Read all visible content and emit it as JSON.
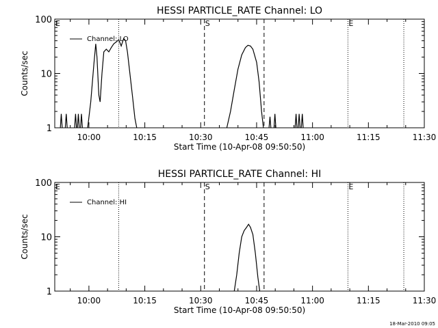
{
  "colors": {
    "background": "#ffffff",
    "ink": "#000000"
  },
  "footer_timestamp": "18-Mar-2010 09:05",
  "chart_data": [
    {
      "type": "line",
      "title": "HESSI PARTICLE_RATE Channel: LO",
      "xlabel": "Start Time (10-Apr-08 09:50:50)",
      "ylabel": "Counts/sec",
      "y_scale": "log",
      "ylim": [
        1,
        100
      ],
      "y_ticks": [
        {
          "value": 1,
          "label": "1"
        },
        {
          "value": 10,
          "label": "10"
        },
        {
          "value": 100,
          "label": "100"
        }
      ],
      "xlim": [
        "09:50:50",
        "11:30:00"
      ],
      "x_ticks": [
        "10:00",
        "10:15",
        "10:30",
        "10:45",
        "11:00",
        "11:15",
        "11:30"
      ],
      "legend": {
        "label": "Channel: LO",
        "position": "top-left"
      },
      "markers": [
        {
          "time": "09:50:50",
          "style": "dotted",
          "label": "E"
        },
        {
          "time": "10:08:00",
          "style": "dotted",
          "label": ""
        },
        {
          "time": "10:31:00",
          "style": "dashed",
          "label": "S"
        },
        {
          "time": "10:47:00",
          "style": "dashed",
          "label": ""
        },
        {
          "time": "11:09:30",
          "style": "dotted",
          "label": "E"
        },
        {
          "time": "11:24:30",
          "style": "dotted",
          "label": ""
        }
      ],
      "series": [
        {
          "name": "Channel: LO",
          "segments": [
            [
              [
                "09:52:20",
                1
              ],
              [
                "09:52:35",
                1.8
              ],
              [
                "09:52:50",
                1
              ]
            ],
            [
              [
                "09:53:40",
                1
              ],
              [
                "09:53:55",
                1.8
              ],
              [
                "09:54:10",
                1
              ]
            ],
            [
              [
                "09:56:10",
                1
              ],
              [
                "09:56:25",
                1.8
              ],
              [
                "09:56:40",
                1
              ]
            ],
            [
              [
                "09:56:55",
                1
              ],
              [
                "09:57:10",
                1.8
              ],
              [
                "09:57:25",
                1
              ]
            ],
            [
              [
                "09:57:45",
                1
              ],
              [
                "09:58:00",
                1.8
              ],
              [
                "09:58:15",
                1
              ]
            ],
            [
              [
                "09:59:40",
                1
              ],
              [
                "10:00:30",
                3
              ],
              [
                "10:01:20",
                15
              ],
              [
                "10:01:50",
                35
              ],
              [
                "10:02:10",
                20
              ],
              [
                "10:02:40",
                4
              ],
              [
                "10:03:00",
                3
              ],
              [
                "10:03:30",
                10
              ],
              [
                "10:04:00",
                25
              ],
              [
                "10:04:40",
                28
              ],
              [
                "10:05:20",
                25
              ],
              [
                "10:06:00",
                30
              ],
              [
                "10:06:40",
                35
              ],
              [
                "10:07:20",
                38
              ],
              [
                "10:08:00",
                42
              ],
              [
                "10:08:40",
                32
              ],
              [
                "10:09:20",
                44
              ],
              [
                "10:09:50",
                40
              ],
              [
                "10:10:20",
                25
              ],
              [
                "10:11:00",
                10
              ],
              [
                "10:11:40",
                4
              ],
              [
                "10:12:20",
                1.5
              ],
              [
                "10:12:50",
                1
              ]
            ],
            [
              [
                "10:37:00",
                1
              ],
              [
                "10:38:00",
                2
              ],
              [
                "10:39:00",
                5
              ],
              [
                "10:40:00",
                12
              ],
              [
                "10:41:00",
                22
              ],
              [
                "10:42:00",
                30
              ],
              [
                "10:42:40",
                33
              ],
              [
                "10:43:20",
                32
              ],
              [
                "10:44:00",
                28
              ],
              [
                "10:45:00",
                16
              ],
              [
                "10:45:40",
                7
              ],
              [
                "10:46:20",
                2
              ],
              [
                "10:46:50",
                1
              ]
            ],
            [
              [
                "10:48:20",
                1
              ],
              [
                "10:48:35",
                1.6
              ],
              [
                "10:48:50",
                1
              ]
            ],
            [
              [
                "10:49:40",
                1
              ],
              [
                "10:49:55",
                1.8
              ],
              [
                "10:50:10",
                1
              ]
            ],
            [
              [
                "10:55:20",
                1
              ],
              [
                "10:55:35",
                1.8
              ],
              [
                "10:55:50",
                1
              ]
            ],
            [
              [
                "10:56:10",
                1
              ],
              [
                "10:56:25",
                1.8
              ],
              [
                "10:56:40",
                1
              ]
            ],
            [
              [
                "10:57:00",
                1
              ],
              [
                "10:57:15",
                1.8
              ],
              [
                "10:57:30",
                1
              ]
            ]
          ]
        }
      ]
    },
    {
      "type": "line",
      "title": "HESSI PARTICLE_RATE Channel: HI",
      "xlabel": "Start Time (10-Apr-08 09:50:50)",
      "ylabel": "Counts/sec",
      "y_scale": "log",
      "ylim": [
        1,
        100
      ],
      "y_ticks": [
        {
          "value": 1,
          "label": "1"
        },
        {
          "value": 10,
          "label": "10"
        },
        {
          "value": 100,
          "label": "100"
        }
      ],
      "xlim": [
        "09:50:50",
        "11:30:00"
      ],
      "x_ticks": [
        "10:00",
        "10:15",
        "10:30",
        "10:45",
        "11:00",
        "11:15",
        "11:30"
      ],
      "legend": {
        "label": "Channel: HI",
        "position": "top-left"
      },
      "markers": [
        {
          "time": "09:50:50",
          "style": "dotted",
          "label": "E"
        },
        {
          "time": "10:08:00",
          "style": "dotted",
          "label": ""
        },
        {
          "time": "10:31:00",
          "style": "dashed",
          "label": "S"
        },
        {
          "time": "10:47:00",
          "style": "dashed",
          "label": ""
        },
        {
          "time": "11:09:30",
          "style": "dotted",
          "label": "E"
        },
        {
          "time": "11:24:30",
          "style": "dotted",
          "label": ""
        }
      ],
      "series": [
        {
          "name": "Channel: HI",
          "segments": [
            [
              [
                "10:39:00",
                1
              ],
              [
                "10:39:40",
                2
              ],
              [
                "10:40:20",
                5
              ],
              [
                "10:41:00",
                10
              ],
              [
                "10:41:40",
                13
              ],
              [
                "10:42:20",
                15
              ],
              [
                "10:42:50",
                17
              ],
              [
                "10:43:20",
                15
              ],
              [
                "10:44:00",
                11
              ],
              [
                "10:44:40",
                5
              ],
              [
                "10:45:20",
                1.8
              ],
              [
                "10:45:50",
                1
              ]
            ]
          ]
        }
      ]
    }
  ]
}
